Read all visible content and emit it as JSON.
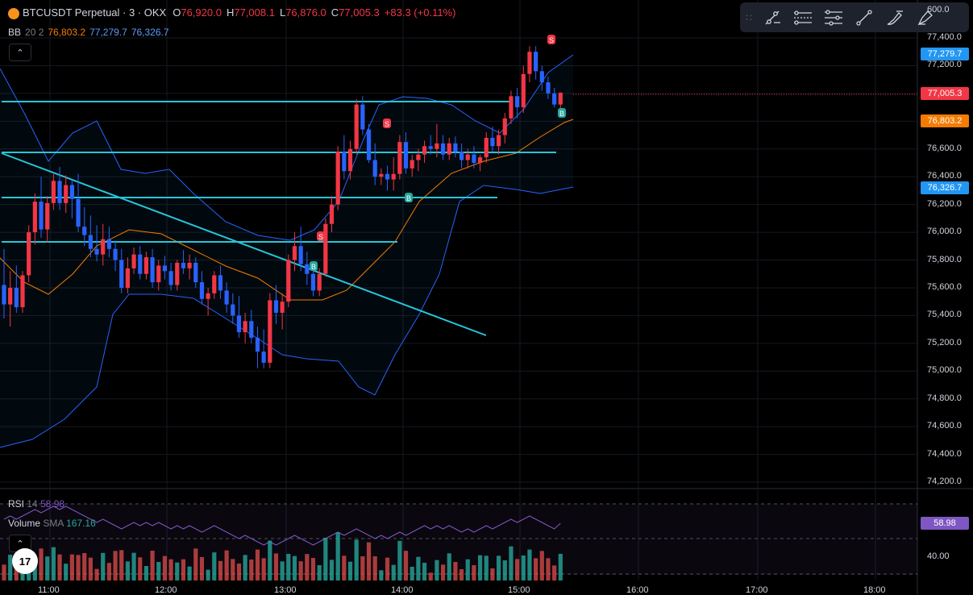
{
  "header": {
    "symbol": "BTCUSDT Perpetual · 3 · OKX",
    "o_label": "O",
    "o_value": "76,920.0",
    "h_label": "H",
    "h_value": "77,008.1",
    "l_label": "L",
    "l_value": "76,876.0",
    "c_label": "C",
    "c_value": "77,005.3",
    "change": "+83.3 (+0.11%)"
  },
  "bb_legend": {
    "name": "BB",
    "params": "20 2",
    "basis": "76,803.2",
    "upper": "77,279.7",
    "lower": "76,326.7",
    "colors": {
      "basis": "#f57c00",
      "upper": "#2962ff",
      "lower": "#2962ff"
    }
  },
  "toolbar": {
    "tools": [
      "grip-icon",
      "trend-line-tool-icon",
      "horizontal-ray-tool-icon",
      "parallel-channel-tool-icon",
      "line-tool-icon",
      "brush-tool-icon",
      "highlighter-tool-icon"
    ]
  },
  "price_axis": {
    "ticks": [
      "77,400.0",
      "77,200.0",
      "76,600.0",
      "76,400.0",
      "76,200.0",
      "76,000.0",
      "75,800.0",
      "75,600.0",
      "75,400.0",
      "75,200.0",
      "75,000.0",
      "74,800.0",
      "74,600.0",
      "74,400.0",
      "74,200.0"
    ],
    "partial_top": "600.0",
    "labels": {
      "upper": {
        "text": "77,279.7",
        "color": "#2196f3"
      },
      "last": {
        "text": "77,005.3",
        "color": "#f23645"
      },
      "basis": {
        "text": "76,803.2",
        "color": "#f57c00"
      },
      "lower": {
        "text": "76,326.7",
        "color": "#2196f3"
      }
    }
  },
  "rsi_pane": {
    "name": "RSI",
    "period": "14",
    "value": "58.98",
    "axis_label": "40.00",
    "color": "#7e57c2"
  },
  "volume_legend": {
    "name": "Volume",
    "sma_label": "SMA",
    "sma_value": "167.16"
  },
  "time_axis": {
    "ticks": [
      "11:00",
      "12:00",
      "13:00",
      "14:00",
      "15:00",
      "16:00",
      "17:00",
      "18:00"
    ]
  },
  "markers": [
    "S",
    "B",
    "S",
    "B",
    "S",
    "B"
  ],
  "colors": {
    "up": "#f23645",
    "down": "#2962ff",
    "hline": "#26c6da",
    "vol_up": "#26a69a",
    "vol_down": "#ef5350"
  },
  "chart_data": {
    "type": "candlestick",
    "timeframe": "3",
    "ohlc": [
      [
        75620,
        75880,
        75380,
        75480
      ],
      [
        75480,
        75720,
        75320,
        75600
      ],
      [
        75600,
        75760,
        75420,
        75460
      ],
      [
        75460,
        75720,
        75420,
        75690
      ],
      [
        75690,
        76050,
        75640,
        76000
      ],
      [
        76000,
        76280,
        75910,
        76220
      ],
      [
        76220,
        76400,
        75960,
        76020
      ],
      [
        76020,
        76260,
        75930,
        76210
      ],
      [
        76210,
        76420,
        76160,
        76370
      ],
      [
        76370,
        76470,
        76160,
        76210
      ],
      [
        76210,
        76410,
        76140,
        76340
      ],
      [
        76340,
        76380,
        76100,
        76240
      ],
      [
        76240,
        76420,
        76000,
        76040
      ],
      [
        76040,
        76180,
        75900,
        75980
      ],
      [
        75980,
        76120,
        75820,
        75880
      ],
      [
        75880,
        76050,
        75790,
        75840
      ],
      [
        75840,
        76060,
        75760,
        75950
      ],
      [
        75950,
        76040,
        75820,
        75880
      ],
      [
        75880,
        75940,
        75720,
        75800
      ],
      [
        75800,
        75880,
        75560,
        75600
      ],
      [
        75600,
        75820,
        75560,
        75740
      ],
      [
        75740,
        75890,
        75700,
        75840
      ],
      [
        75840,
        75900,
        75660,
        75700
      ],
      [
        75700,
        75860,
        75660,
        75820
      ],
      [
        75820,
        75880,
        75600,
        75640
      ],
      [
        75640,
        75800,
        75580,
        75760
      ],
      [
        75760,
        75830,
        75660,
        75720
      ],
      [
        75720,
        75780,
        75580,
        75620
      ],
      [
        75620,
        75800,
        75580,
        75780
      ],
      [
        75780,
        75870,
        75700,
        75740
      ],
      [
        75740,
        75840,
        75660,
        75780
      ],
      [
        75780,
        75820,
        75600,
        75640
      ],
      [
        75640,
        75720,
        75480,
        75520
      ],
      [
        75520,
        75600,
        75400,
        75560
      ],
      [
        75560,
        75720,
        75520,
        75690
      ],
      [
        75690,
        75760,
        75520,
        75580
      ],
      [
        75580,
        75640,
        75420,
        75480
      ],
      [
        75480,
        75560,
        75340,
        75400
      ],
      [
        75400,
        75540,
        75240,
        75280
      ],
      [
        75280,
        75420,
        75200,
        75360
      ],
      [
        75360,
        75440,
        75200,
        75240
      ],
      [
        75240,
        75320,
        75020,
        75140
      ],
      [
        75140,
        75300,
        75020,
        75060
      ],
      [
        75060,
        75560,
        75020,
        75510
      ],
      [
        75510,
        75620,
        75340,
        75420
      ],
      [
        75420,
        75560,
        75300,
        75500
      ],
      [
        75500,
        75840,
        75460,
        75800
      ],
      [
        75800,
        76000,
        75720,
        75900
      ],
      [
        75900,
        76040,
        75720,
        75770
      ],
      [
        75770,
        75860,
        75620,
        75700
      ],
      [
        75700,
        75760,
        75540,
        75580
      ],
      [
        75580,
        75740,
        75540,
        75700
      ],
      [
        75700,
        76100,
        75680,
        76060
      ],
      [
        76060,
        76260,
        76000,
        76200
      ],
      [
        76200,
        76620,
        76160,
        76580
      ],
      [
        76580,
        76700,
        76380,
        76440
      ],
      [
        76440,
        76660,
        76380,
        76600
      ],
      [
        76600,
        76960,
        76560,
        76920
      ],
      [
        76920,
        76980,
        76700,
        76740
      ],
      [
        76740,
        76780,
        76500,
        76520
      ],
      [
        76520,
        76640,
        76340,
        76400
      ],
      [
        76400,
        76460,
        76340,
        76420
      ],
      [
        76420,
        76480,
        76300,
        76380
      ],
      [
        76380,
        76540,
        76300,
        76420
      ],
      [
        76420,
        76700,
        76380,
        76650
      ],
      [
        76650,
        76720,
        76420,
        76460
      ],
      [
        76460,
        76560,
        76400,
        76520
      ],
      [
        76520,
        76600,
        76440,
        76560
      ],
      [
        76560,
        76660,
        76500,
        76620
      ],
      [
        76620,
        76700,
        76560,
        76600
      ],
      [
        76600,
        76780,
        76540,
        76640
      ],
      [
        76640,
        76700,
        76520,
        76560
      ],
      [
        76560,
        76680,
        76520,
        76640
      ],
      [
        76640,
        76690,
        76540,
        76580
      ],
      [
        76580,
        76640,
        76460,
        76520
      ],
      [
        76520,
        76600,
        76460,
        76560
      ],
      [
        76560,
        76620,
        76460,
        76500
      ],
      [
        76500,
        76560,
        76440,
        76540
      ],
      [
        76540,
        76720,
        76500,
        76680
      ],
      [
        76680,
        76760,
        76580,
        76620
      ],
      [
        76620,
        76740,
        76560,
        76700
      ],
      [
        76700,
        76860,
        76640,
        76820
      ],
      [
        76820,
        77020,
        76780,
        76980
      ],
      [
        76980,
        77040,
        76820,
        76900
      ],
      [
        76900,
        77200,
        76860,
        77140
      ],
      [
        77140,
        77340,
        77080,
        77300
      ],
      [
        77300,
        77340,
        77100,
        77160
      ],
      [
        77160,
        77200,
        77020,
        77080
      ],
      [
        77080,
        77120,
        76960,
        77000
      ],
      [
        77000,
        77040,
        76900,
        76920
      ],
      [
        76920,
        77008,
        76876,
        77005
      ]
    ],
    "bb": {
      "upper": 77279.7,
      "basis": 76803.2,
      "lower": 76326.7
    },
    "rsi_last": 58.98,
    "volume_sma": 167.16,
    "y_range": [
      74100,
      77700
    ]
  }
}
